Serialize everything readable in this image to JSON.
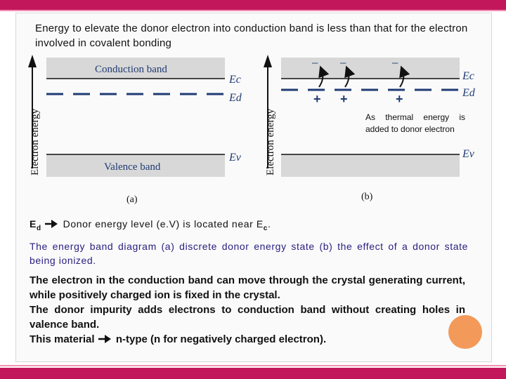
{
  "title": "Energy to elevate the donor electron into conduction band is less than that for the electron involved in covalent bonding",
  "diagram_a": {
    "y_axis_label": "Electron energy",
    "conduction_band_label": "Conduction band",
    "valence_band_label": "Valence band",
    "ec_label": "Ec",
    "ed_label": "Ed",
    "ev_label": "Ev",
    "panel_label": "(a)"
  },
  "diagram_b": {
    "y_axis_label": "Electron energy",
    "ec_label": "Ec",
    "ed_label": "Ed",
    "ev_label": "Ev",
    "panel_label": "(b)",
    "electron_symbol": "−",
    "ion_symbol": "+"
  },
  "note": "As thermal energy is added to donor electron",
  "ed_line": {
    "symbol": "E",
    "subscript": "d",
    "text": "Donor energy level (e.V) is located near E",
    "end_subscript": "c",
    "end": "."
  },
  "caption": "The energy band diagram (a) discrete donor energy state (b) the effect of a donor state being ionized.",
  "paragraphs": {
    "p1": "The electron in the conduction band can move through the crystal generating current, while positively charged ion is fixed in the crystal.",
    "p2": "The donor impurity adds electrons to conduction band without creating holes in valence band.",
    "p3": "This material",
    "p3_rest": "n-type (n for negatively charged electron)."
  },
  "colors": {
    "accent_bar": "#c2185b",
    "band_fill": "#d8d8d8",
    "level_line": "#1f3b73",
    "caption_text": "#2a2080",
    "ion_color": "#1f3b73",
    "circle": "#f39a5a"
  }
}
